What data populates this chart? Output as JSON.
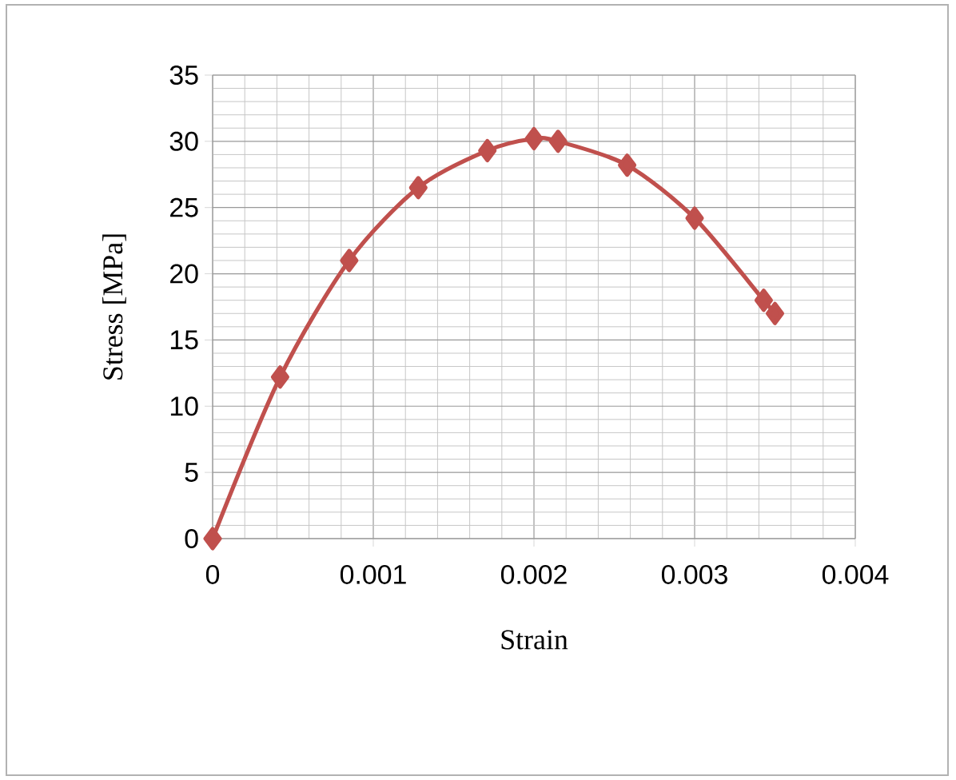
{
  "chart_data": {
    "type": "line",
    "xlabel": "Strain",
    "ylabel": "Stress [MPa]",
    "x": [
      0,
      0.00042,
      0.00085,
      0.00128,
      0.00171,
      0.002,
      0.00215,
      0.00258,
      0.003,
      0.00343,
      0.0035
    ],
    "series": [
      {
        "color": "#c0504d",
        "values": [
          0,
          12.2,
          21,
          26.5,
          29.3,
          30.2,
          30,
          28.2,
          24.2,
          18,
          17
        ]
      }
    ],
    "xlim": [
      0,
      0.004
    ],
    "xticks": [
      0,
      0.001,
      0.002,
      0.003,
      0.004
    ],
    "ylim": [
      0,
      35
    ],
    "yticks": [
      0,
      5,
      10,
      15,
      20,
      25,
      30,
      35
    ],
    "grid": true,
    "marker": "diamond",
    "line_style": "solid"
  }
}
